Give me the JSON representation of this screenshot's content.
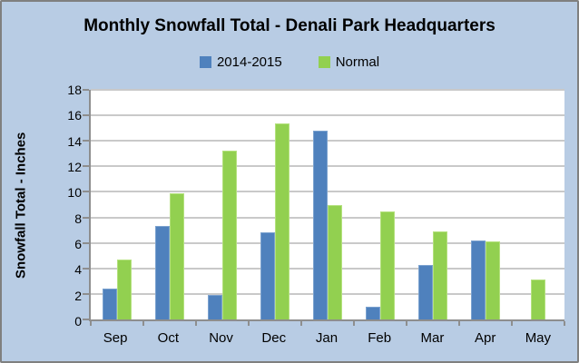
{
  "title": "Monthly Snowfall Total - Denali Park Headquarters",
  "legend": [
    {
      "label": "2014-2015",
      "color": "#4f81bd"
    },
    {
      "label": "Normal",
      "color": "#92d050"
    }
  ],
  "colors": {
    "background": "#b8cce4",
    "plot_background": "#ffffff",
    "gridline": "#c9c9c9",
    "axis_line": "#8e8e8e",
    "frame_border": "#7f7f7f",
    "series_blue": "#4f81bd",
    "series_green": "#92d050",
    "text": "#000000"
  },
  "chart_data": {
    "type": "bar",
    "title": "Monthly Snowfall Total - Denali Park Headquarters",
    "xlabel": "",
    "ylabel": "Snowfall Total - Inches",
    "categories": [
      "Sep",
      "Oct",
      "Nov",
      "Dec",
      "Jan",
      "Feb",
      "Mar",
      "Apr",
      "May"
    ],
    "series": [
      {
        "name": "2014-2015",
        "color": "#4f81bd",
        "values": [
          2.4,
          7.3,
          1.9,
          6.8,
          14.8,
          1.0,
          4.3,
          6.2,
          0
        ]
      },
      {
        "name": "Normal",
        "color": "#92d050",
        "values": [
          4.7,
          9.9,
          13.2,
          15.4,
          9.0,
          8.5,
          6.9,
          6.1,
          3.1
        ]
      }
    ],
    "ylim": [
      0,
      18
    ],
    "yticks": [
      0,
      2,
      4,
      6,
      8,
      10,
      12,
      14,
      16,
      18
    ],
    "grid": true,
    "legend_position": "top"
  }
}
